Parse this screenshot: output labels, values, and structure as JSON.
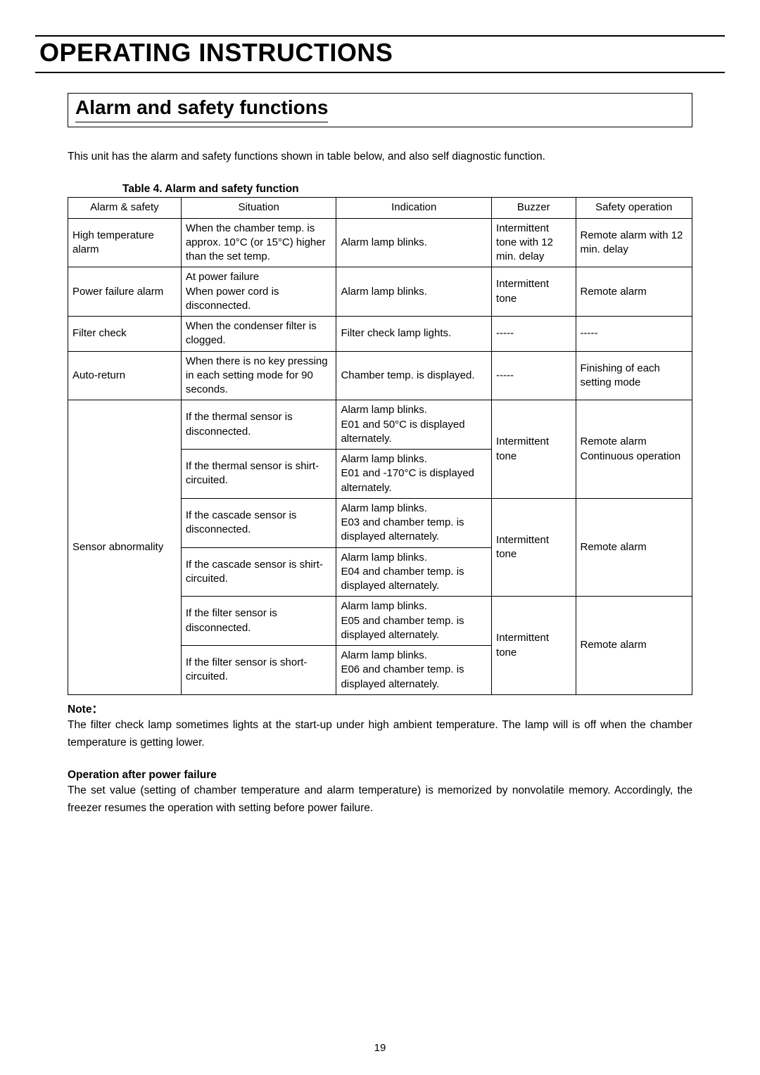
{
  "page": {
    "main_title": "OPERATING INSTRUCTIONS",
    "section_title": "Alarm and safety functions",
    "intro": "This unit has the alarm and safety functions shown in table below, and also self diagnostic function.",
    "table_caption": "Table 4.   Alarm and safety function",
    "note_heading": "Note：",
    "note_body": "The filter check lamp sometimes lights at the start-up under high ambient temperature.   The lamp will is off when the chamber temperature is getting lower.",
    "op_heading": "Operation after power failure",
    "op_body": "The set value (setting of chamber temperature and alarm temperature) is memorized by nonvolatile memory.   Accordingly, the freezer resumes the operation with setting before power failure.",
    "page_number": "19"
  },
  "table": {
    "headers": {
      "alarm": "Alarm & safety",
      "situation": "Situation",
      "indication": "Indication",
      "buzzer": "Buzzer",
      "safety": "Safety operation"
    },
    "rows": {
      "high_temp": {
        "alarm": "High temperature alarm",
        "situation": "When the chamber temp. is approx. 10°C (or 15°C) higher than the set temp.",
        "indication": "Alarm lamp blinks.",
        "buzzer": "Intermittent tone with 12 min. delay",
        "safety": "Remote alarm with 12 min. delay"
      },
      "power_failure": {
        "alarm": "Power failure alarm",
        "situation_l1": "At power failure",
        "situation_l2": "When power cord is disconnected.",
        "indication": "Alarm lamp blinks.",
        "buzzer": "Intermittent tone",
        "safety": "Remote alarm"
      },
      "filter_check": {
        "alarm": "Filter check",
        "situation": "When the condenser filter is clogged.",
        "indication": "Filter check lamp lights.",
        "buzzer": "-----",
        "safety": "-----"
      },
      "auto_return": {
        "alarm": "Auto-return",
        "situation": "When there is no key pressing in each setting mode for 90 seconds.",
        "indication": "Chamber temp. is displayed.",
        "buzzer": "-----",
        "safety": "Finishing of each setting mode"
      },
      "sensor": {
        "alarm": "Sensor abnormality",
        "thermal_disc": {
          "situation": "If the thermal sensor is disconnected.",
          "ind_l1": "Alarm lamp blinks.",
          "ind_l2": "E01 and 50°C is displayed alternately."
        },
        "thermal_short": {
          "situation": "If the thermal sensor is shirt-circuited.",
          "ind_l1": "Alarm lamp blinks.",
          "ind_l2": "E01 and -170°C is displayed alternately."
        },
        "thermal_buzzer": "Intermittent tone",
        "thermal_safety_l1": "Remote alarm",
        "thermal_safety_l2": "Continuous operation",
        "cascade_disc": {
          "situation": "If the cascade sensor is disconnected.",
          "ind_l1": "Alarm lamp blinks.",
          "ind_l2": "E03 and chamber temp. is displayed alternately."
        },
        "cascade_short": {
          "situation": "If the cascade sensor is shirt-circuited.",
          "ind_l1": "Alarm lamp blinks.",
          "ind_l2": "E04 and chamber temp. is displayed alternately."
        },
        "cascade_buzzer": "Intermittent tone",
        "cascade_safety": "Remote alarm",
        "filter_disc": {
          "situation": "If the filter sensor is disconnected.",
          "ind_l1": "Alarm lamp blinks.",
          "ind_l2": "E05 and chamber temp. is displayed alternately."
        },
        "filter_short": {
          "situation": "If the filter sensor is short-circuited.",
          "ind_l1": "Alarm lamp blinks.",
          "ind_l2": "E06 and chamber temp. is displayed alternately."
        },
        "filter_buzzer": "Intermittent tone",
        "filter_safety": "Remote alarm"
      }
    }
  }
}
